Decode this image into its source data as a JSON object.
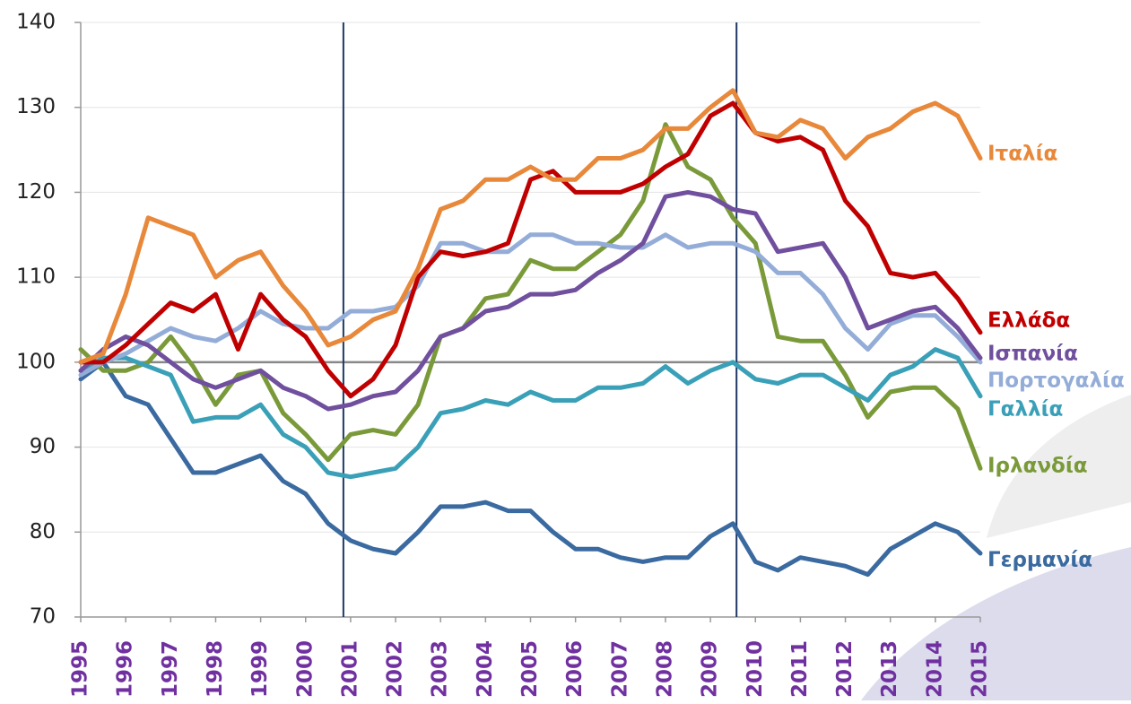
{
  "chart_data": {
    "type": "line",
    "x": [
      1995,
      1995.5,
      1996,
      1996.5,
      1997,
      1997.5,
      1998,
      1998.5,
      1999,
      1999.5,
      2000,
      2000.5,
      2001,
      2001.5,
      2002,
      2002.5,
      2003,
      2003.5,
      2004,
      2004.5,
      2005,
      2005.5,
      2006,
      2006.5,
      2007,
      2007.5,
      2008,
      2008.5,
      2009,
      2009.5,
      2010,
      2010.5,
      2011,
      2011.5,
      2012,
      2012.5,
      2013,
      2013.5,
      2014,
      2014.5,
      2015
    ],
    "xlim": [
      1995,
      2015
    ],
    "xticks": [
      1995,
      1996,
      1997,
      1998,
      1999,
      2000,
      2001,
      2002,
      2003,
      2004,
      2005,
      2006,
      2007,
      2008,
      2009,
      2010,
      2011,
      2012,
      2013,
      2014,
      2015
    ],
    "ylim": [
      70,
      140
    ],
    "yticks": [
      70,
      80,
      90,
      100,
      110,
      120,
      130,
      140
    ],
    "grid": true,
    "reference_line": 100,
    "vertical_lines": [
      2000.84,
      2009.58
    ],
    "series": [
      {
        "name": "Ιταλία",
        "color": "#e8883a",
        "values": [
          100,
          101,
          108,
          117,
          116,
          115,
          110,
          112,
          113,
          109,
          106,
          102,
          103,
          105,
          106,
          111,
          118,
          119,
          121.5,
          121.5,
          123,
          121.5,
          121.5,
          124,
          124,
          125,
          127.5,
          127.5,
          130,
          132,
          127,
          126.5,
          128.5,
          127.5,
          124,
          126.5,
          127.5,
          129.5,
          130.5,
          129,
          124
        ]
      },
      {
        "name": "Ελλάδα",
        "color": "#c00000",
        "values": [
          100,
          100,
          102,
          104.5,
          107,
          106,
          108,
          101.5,
          108,
          105,
          103,
          99,
          96,
          98,
          102,
          110,
          113,
          112.5,
          113,
          114,
          121.5,
          122.5,
          120,
          120,
          120,
          121,
          123,
          124.5,
          129,
          130.5,
          127,
          126,
          126.5,
          125,
          119,
          116,
          110.5,
          110,
          110.5,
          107.5,
          103.5
        ]
      },
      {
        "name": "Ισπανία",
        "color": "#70509e",
        "values": [
          99,
          101.5,
          103,
          102,
          100,
          98,
          97,
          98,
          99,
          97,
          96,
          94.5,
          95,
          96,
          96.5,
          99,
          103,
          104,
          106,
          106.5,
          108,
          108,
          108.5,
          110.5,
          112,
          114,
          119.5,
          120,
          119.5,
          118,
          117.5,
          113,
          113.5,
          114,
          110,
          104,
          105,
          106,
          106.5,
          104,
          100.5
        ]
      },
      {
        "name": "Πορτογαλία",
        "color": "#94add8",
        "values": [
          98.5,
          100,
          101,
          102.5,
          104,
          103,
          102.5,
          104,
          106,
          104.5,
          104,
          104,
          106,
          106,
          106.5,
          109,
          114,
          114,
          113,
          113,
          115,
          115,
          114,
          114,
          113.5,
          113.5,
          115,
          113.5,
          114,
          114,
          113,
          110.5,
          110.5,
          108,
          104,
          101.5,
          104.5,
          105.5,
          105.5,
          103,
          100
        ]
      },
      {
        "name": "Γαλλία",
        "color": "#3aa0b8",
        "values": [
          99,
          100.5,
          100.5,
          99.5,
          98.5,
          93,
          93.5,
          93.5,
          95,
          91.5,
          90,
          87,
          86.5,
          87,
          87.5,
          90,
          94,
          94.5,
          95.5,
          95,
          96.5,
          95.5,
          95.5,
          97,
          97,
          97.5,
          99.5,
          97.5,
          99,
          100,
          98,
          97.5,
          98.5,
          98.5,
          97,
          95.5,
          98.5,
          99.5,
          101.5,
          100.5,
          96
        ]
      },
      {
        "name": "Ιρλανδία",
        "color": "#7a9a3a",
        "values": [
          101.5,
          99,
          99,
          100,
          103,
          99.5,
          95,
          98.5,
          99,
          94,
          91.5,
          88.5,
          91.5,
          92,
          91.5,
          95,
          103,
          104,
          107.5,
          108,
          112,
          111,
          111,
          113,
          115,
          119,
          128,
          123,
          121.5,
          117,
          114,
          103,
          102.5,
          102.5,
          98.5,
          93.5,
          96.5,
          97,
          97,
          94.5,
          87.5
        ]
      },
      {
        "name": "Γερμανία",
        "color": "#3a6aa0",
        "values": [
          98,
          100,
          96,
          95,
          91,
          87,
          87,
          88,
          89,
          86,
          84.5,
          81,
          79,
          78,
          77.5,
          80,
          83,
          83,
          83.5,
          82.5,
          82.5,
          80,
          78,
          78,
          77,
          76.5,
          77,
          77,
          79.5,
          81,
          76.5,
          75.5,
          77,
          76.5,
          76,
          75,
          78,
          79.5,
          81,
          80,
          77.5
        ]
      }
    ]
  }
}
